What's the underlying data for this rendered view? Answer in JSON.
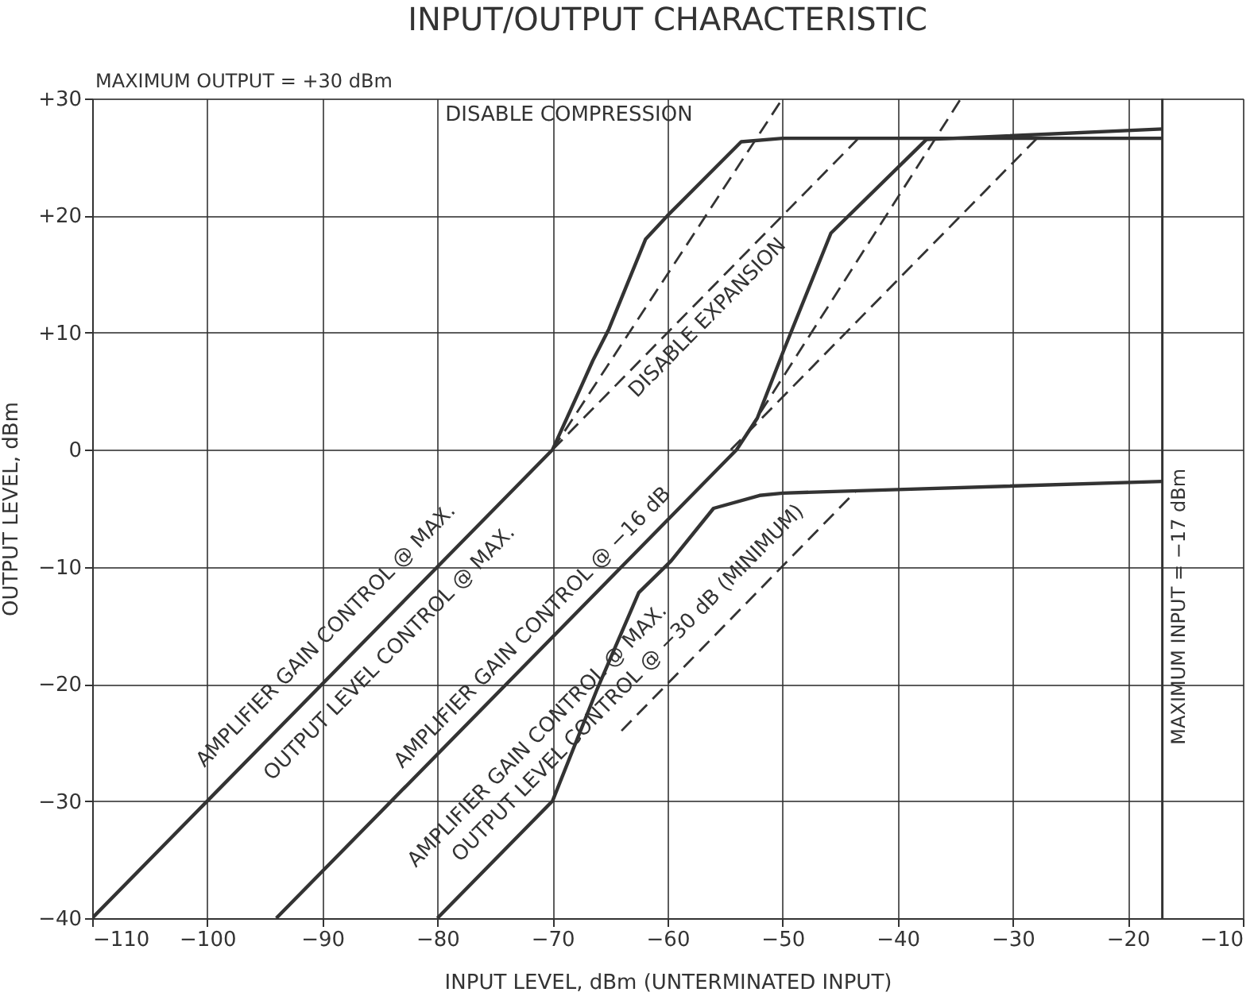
{
  "chart_data": {
    "type": "line",
    "title": "INPUT/OUTPUT CHARACTERISTIC",
    "xlabel": "INPUT LEVEL, dBm (UNTERMINATED INPUT)",
    "ylabel": "OUTPUT LEVEL, dBm",
    "xlim": [
      -110,
      -10
    ],
    "xticks": [
      -110,
      -100,
      -90,
      -80,
      -70,
      -60,
      -50,
      -40,
      -30,
      -20,
      -10
    ],
    "ylim": [
      -40,
      30
    ],
    "yticks": [
      -40,
      -30,
      -20,
      -10,
      0,
      {
        "value": 10,
        "label": "+10"
      },
      {
        "value": 20,
        "label": "+20"
      },
      {
        "value": 30,
        "label": "+30"
      }
    ],
    "grid": true,
    "series": [
      {
        "color": "#333333",
        "line_style": "solid",
        "x": [
          -110,
          -70,
          -67.5,
          -66.5,
          -65.1,
          -61.9,
          -60,
          -53.6,
          -50,
          -17
        ],
        "values": [
          -40,
          0,
          5.4,
          7.6,
          10.3,
          18,
          20,
          26.3,
          26.6,
          26.6
        ]
      },
      {
        "color": "#333333",
        "line_style": "solid",
        "x": [
          -94,
          -54,
          -52.2,
          -49.9,
          -45.8,
          -37.5,
          -17
        ],
        "values": [
          -40,
          0,
          2.7,
          8.5,
          18.5,
          26.5,
          27.4
        ]
      },
      {
        "color": "#333333",
        "line_style": "solid",
        "x": [
          -80,
          -70,
          -66.1,
          -62.5,
          -59.7,
          -56,
          -52,
          -50,
          -40,
          -17
        ],
        "values": [
          -40,
          -30,
          -20.4,
          -12.2,
          -9.5,
          -5,
          -3.9,
          -3.7,
          -3.4,
          -2.7
        ]
      },
      {
        "color": "#333333",
        "line_style": "dashed",
        "x": [
          -70,
          -50
        ],
        "values": [
          0,
          30
        ]
      },
      {
        "color": "#333333",
        "line_style": "dashed",
        "x": [
          -70,
          -43.5
        ],
        "values": [
          0,
          26.5
        ]
      },
      {
        "color": "#333333",
        "line_style": "dashed",
        "x": [
          -54,
          -34.5
        ],
        "values": [
          0,
          30
        ]
      },
      {
        "color": "#333333",
        "line_style": "dashed",
        "x": [
          -54.5,
          -27.8
        ],
        "values": [
          0,
          26.7
        ]
      },
      {
        "color": "#333333",
        "line_style": "dashed",
        "x": [
          -64,
          -43.6
        ],
        "values": [
          -24,
          -3.5
        ]
      }
    ],
    "ref_lines": [
      {
        "axis": "x",
        "value": -17,
        "label": "MAXIMUM INPUT = −17 dBm",
        "color": "#333333",
        "line_style": "solid"
      }
    ],
    "annotations": [
      "AMPLIFIER GAIN CONTROL @ MAX.",
      "OUTPUT LEVEL CONTROL @ MAX.",
      "AMPLIFIER GAIN CONTROL @ −16 dB",
      "AMPLIFIER GAIN CONTROL @ MAX.",
      "OUTPUT LEVEL CONTROL @ −30 dB (MINIMUM)",
      "DISABLE EXPANSION",
      "DISABLE COMPRESSION",
      "MAXIMUM OUTPUT = +30 dBm"
    ]
  }
}
